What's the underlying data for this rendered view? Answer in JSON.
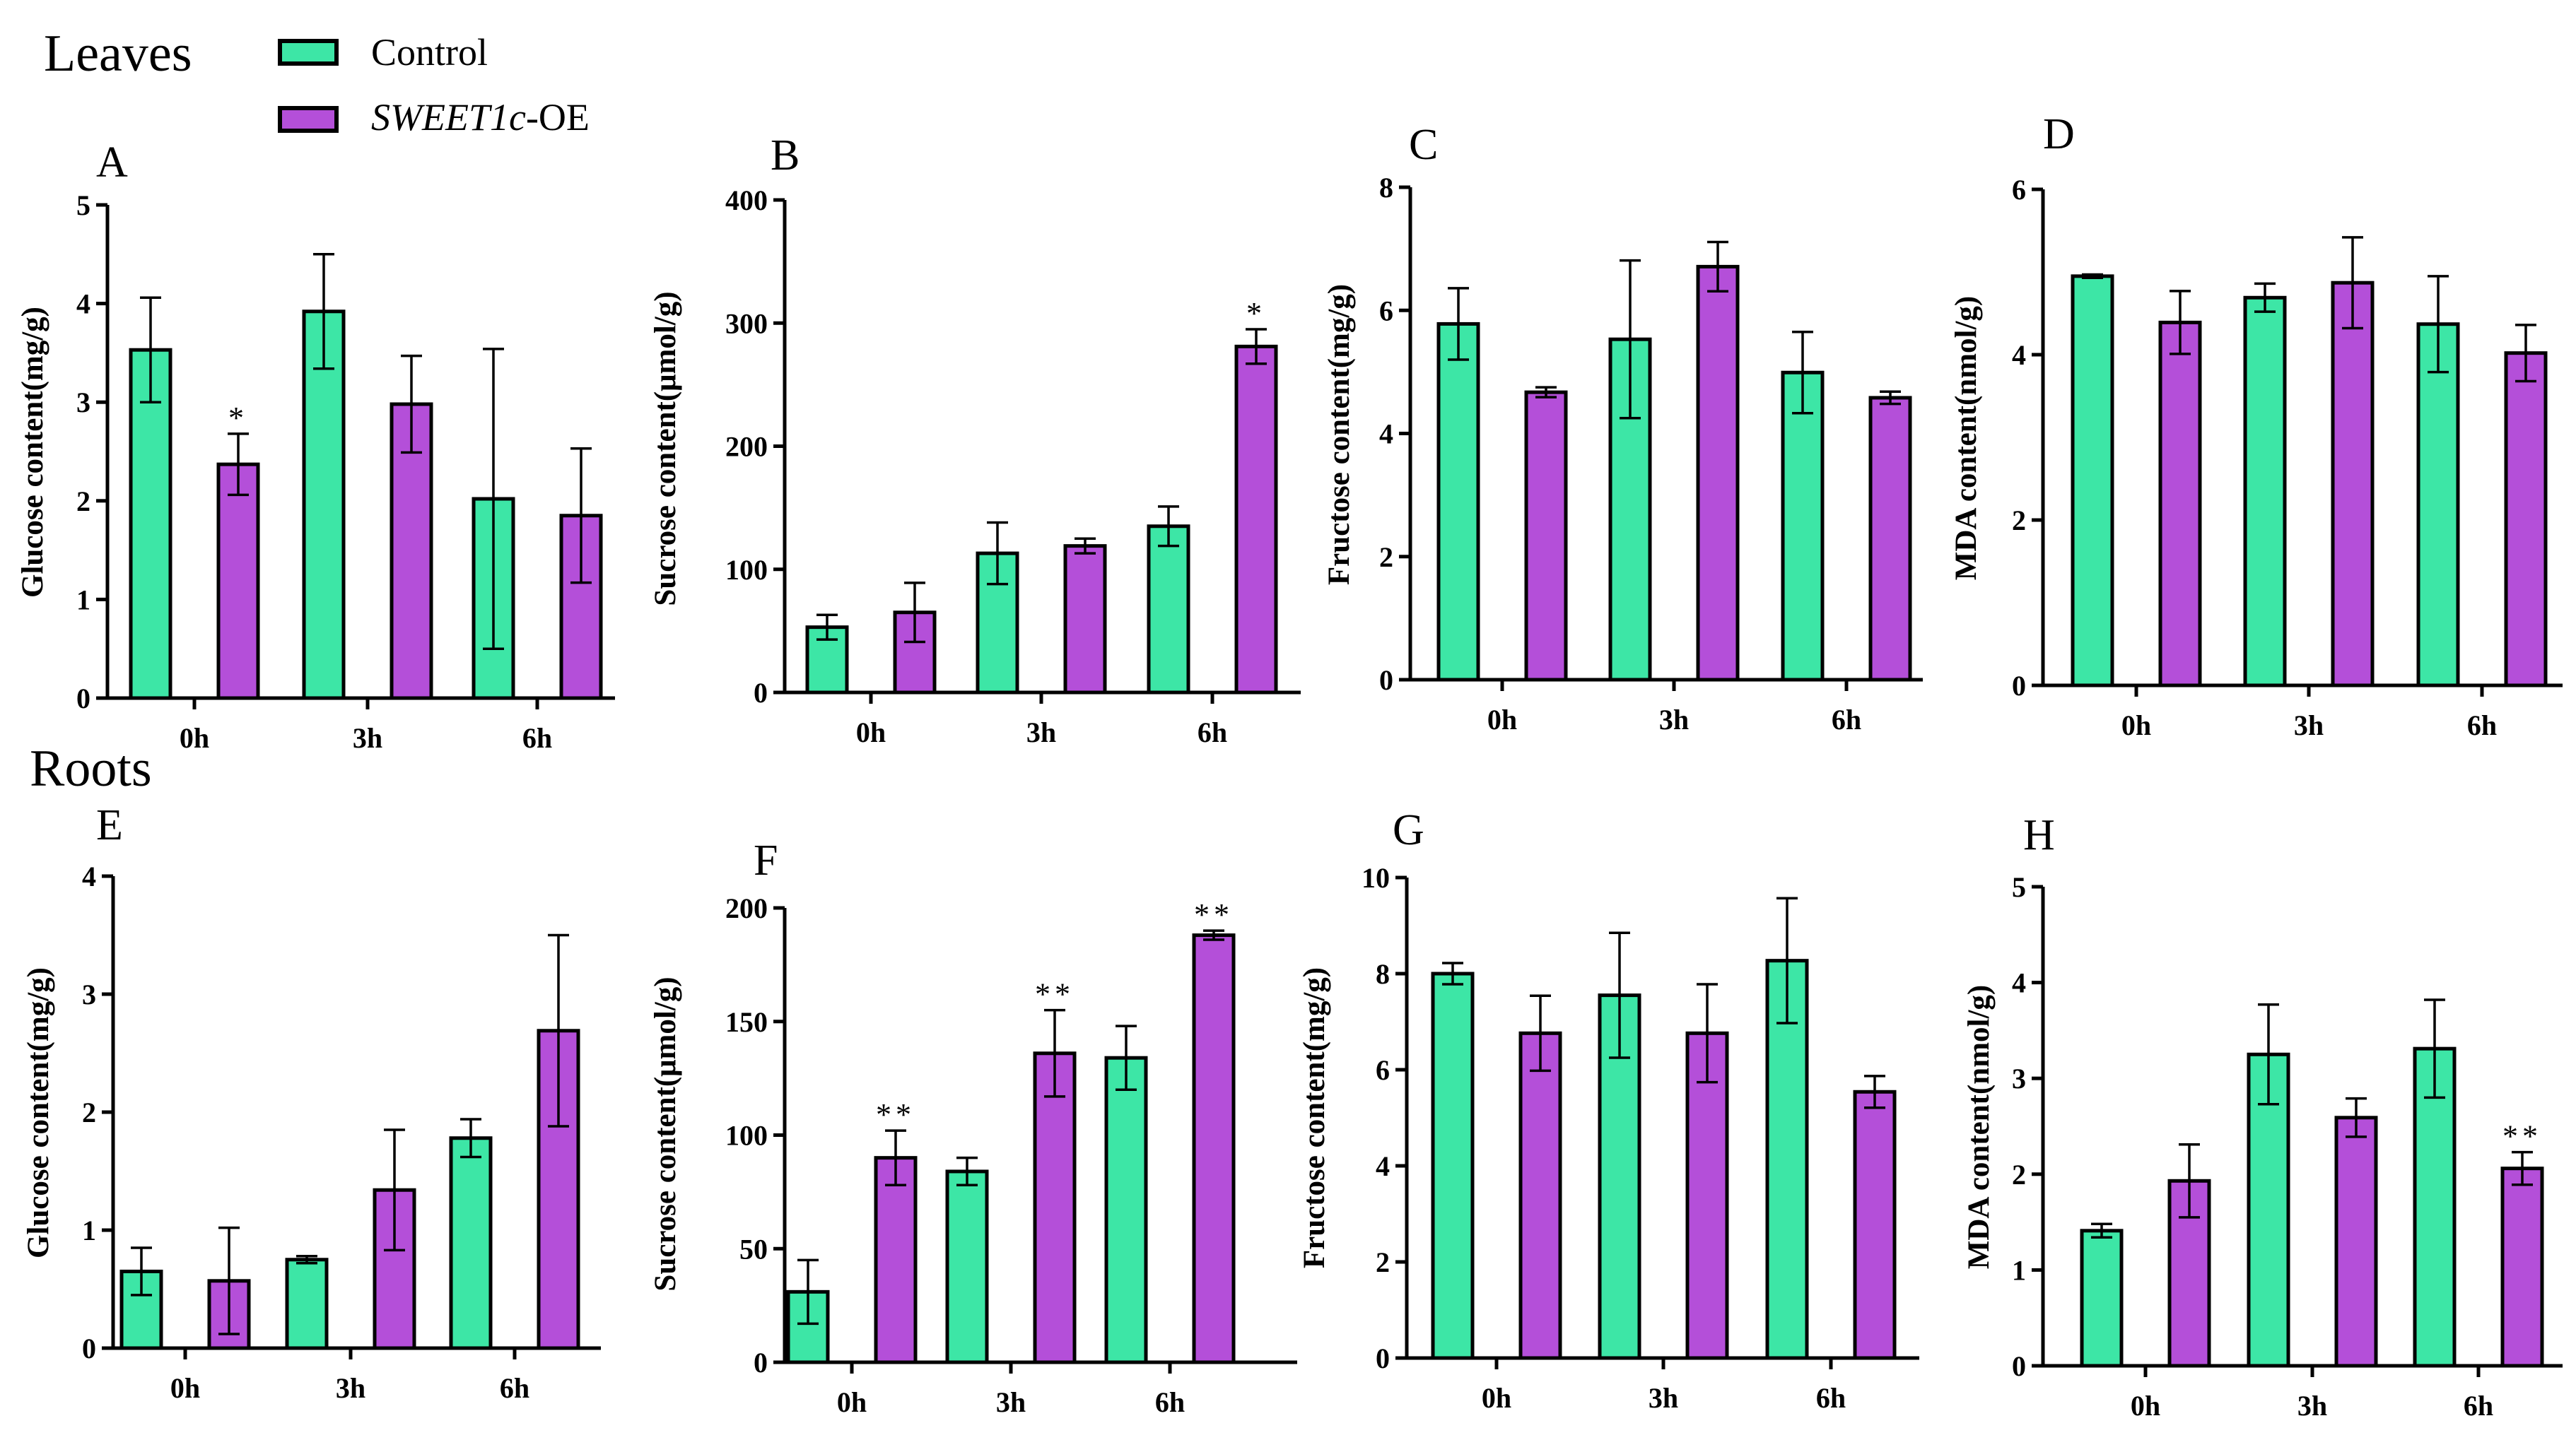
{
  "sections": {
    "leaves": "Leaves",
    "roots": "Roots"
  },
  "legend": {
    "control": "Control",
    "oe_italic": "SWEET1c",
    "oe_suffix": "-OE"
  },
  "colors": {
    "control": "#3de6a6",
    "oe": "#b44fd9",
    "axis": "#000000"
  },
  "chart_data": [
    {
      "panel": "A",
      "type": "bar",
      "section": "Leaves",
      "ylabel": "Glucose content(mg/g)",
      "categories": [
        "0h",
        "3h",
        "6h"
      ],
      "ylim": [
        0,
        5
      ],
      "yticks": [
        0,
        1,
        2,
        3,
        4,
        5
      ],
      "series": [
        {
          "name": "Control",
          "values": [
            3.53,
            3.92,
            2.02
          ],
          "errors": [
            0.53,
            0.58,
            1.52
          ],
          "sig": [
            "",
            "",
            ""
          ]
        },
        {
          "name": "SWEET1c-OE",
          "values": [
            2.37,
            2.98,
            1.85
          ],
          "errors": [
            0.31,
            0.49,
            0.68
          ],
          "sig": [
            "*",
            "",
            ""
          ]
        }
      ]
    },
    {
      "panel": "B",
      "type": "bar",
      "section": "Leaves",
      "ylabel": "Sucrose content(μmol/g)",
      "categories": [
        "0h",
        "3h",
        "6h"
      ],
      "ylim": [
        0,
        400
      ],
      "yticks": [
        0,
        100,
        200,
        300,
        400
      ],
      "series": [
        {
          "name": "Control",
          "values": [
            53,
            113,
            135
          ],
          "errors": [
            10,
            25,
            16
          ],
          "sig": [
            "",
            "",
            ""
          ]
        },
        {
          "name": "SWEET1c-OE",
          "values": [
            65,
            119,
            281
          ],
          "errors": [
            24,
            6,
            14
          ],
          "sig": [
            "",
            "",
            "*"
          ]
        }
      ]
    },
    {
      "panel": "C",
      "type": "bar",
      "section": "Leaves",
      "ylabel": "Fructose content(mg/g)",
      "categories": [
        "0h",
        "3h",
        "6h"
      ],
      "ylim": [
        0,
        8
      ],
      "yticks": [
        0,
        2,
        4,
        6,
        8
      ],
      "series": [
        {
          "name": "Control",
          "values": [
            5.78,
            5.53,
            4.99
          ],
          "errors": [
            0.58,
            1.28,
            0.66
          ],
          "sig": [
            "",
            "",
            ""
          ]
        },
        {
          "name": "SWEET1c-OE",
          "values": [
            4.67,
            6.71,
            4.58
          ],
          "errors": [
            0.08,
            0.4,
            0.1
          ],
          "sig": [
            "",
            "",
            ""
          ]
        }
      ]
    },
    {
      "panel": "D",
      "type": "bar",
      "section": "Leaves",
      "ylabel": "MDA content(nmol/g)",
      "categories": [
        "0h",
        "3h",
        "6h"
      ],
      "ylim": [
        0,
        6
      ],
      "yticks": [
        0,
        2,
        4,
        6
      ],
      "series": [
        {
          "name": "Control",
          "values": [
            4.95,
            4.69,
            4.37
          ],
          "errors": [
            0.02,
            0.17,
            0.58
          ],
          "sig": [
            "",
            "",
            ""
          ]
        },
        {
          "name": "SWEET1c-OE",
          "values": [
            4.39,
            4.87,
            4.02
          ],
          "errors": [
            0.38,
            0.55,
            0.34
          ],
          "sig": [
            "",
            "",
            ""
          ]
        }
      ]
    },
    {
      "panel": "E",
      "type": "bar",
      "section": "Roots",
      "ylabel": "Glucose content(mg/g)",
      "categories": [
        "0h",
        "3h",
        "6h"
      ],
      "ylim": [
        0,
        4
      ],
      "yticks": [
        0,
        1,
        2,
        3,
        4
      ],
      "series": [
        {
          "name": "Control",
          "values": [
            0.65,
            0.75,
            1.78
          ],
          "errors": [
            0.2,
            0.03,
            0.16
          ],
          "sig": [
            "",
            "",
            ""
          ]
        },
        {
          "name": "SWEET1c-OE",
          "values": [
            0.57,
            1.34,
            2.69
          ],
          "errors": [
            0.45,
            0.51,
            0.81
          ],
          "sig": [
            "",
            "",
            ""
          ]
        }
      ]
    },
    {
      "panel": "F",
      "type": "bar",
      "section": "Roots",
      "ylabel": "Sucrose content(μmol/g)",
      "categories": [
        "0h",
        "3h",
        "6h"
      ],
      "ylim": [
        0,
        200
      ],
      "yticks": [
        0,
        50,
        100,
        150,
        200
      ],
      "series": [
        {
          "name": "Control",
          "values": [
            31,
            84,
            134
          ],
          "errors": [
            14,
            6,
            14
          ],
          "sig": [
            "",
            "",
            ""
          ]
        },
        {
          "name": "SWEET1c-OE",
          "values": [
            90,
            136,
            188
          ],
          "errors": [
            12,
            19,
            2
          ],
          "sig": [
            "**",
            "**",
            "**"
          ]
        }
      ]
    },
    {
      "panel": "G",
      "type": "bar",
      "section": "Roots",
      "ylabel": "Fructose content(mg/g)",
      "categories": [
        "0h",
        "3h",
        "6h"
      ],
      "ylim": [
        0,
        10
      ],
      "yticks": [
        0,
        2,
        4,
        6,
        8,
        10
      ],
      "series": [
        {
          "name": "Control",
          "values": [
            8.0,
            7.55,
            8.27
          ],
          "errors": [
            0.22,
            1.3,
            1.3
          ],
          "sig": [
            "",
            "",
            ""
          ]
        },
        {
          "name": "SWEET1c-OE",
          "values": [
            6.76,
            6.76,
            5.54
          ],
          "errors": [
            0.78,
            1.02,
            0.33
          ],
          "sig": [
            "",
            "",
            ""
          ]
        }
      ]
    },
    {
      "panel": "H",
      "type": "bar",
      "section": "Roots",
      "ylabel": "MDA content(nmol/g)",
      "categories": [
        "0h",
        "3h",
        "6h"
      ],
      "ylim": [
        0,
        5
      ],
      "yticks": [
        0,
        1,
        2,
        3,
        4,
        5
      ],
      "series": [
        {
          "name": "Control",
          "values": [
            1.41,
            3.25,
            3.31
          ],
          "errors": [
            0.07,
            0.52,
            0.51
          ],
          "sig": [
            "",
            "",
            ""
          ]
        },
        {
          "name": "SWEET1c-OE",
          "values": [
            1.93,
            2.59,
            2.06
          ],
          "errors": [
            0.38,
            0.2,
            0.17
          ],
          "sig": [
            "",
            "",
            "**"
          ]
        }
      ]
    }
  ]
}
